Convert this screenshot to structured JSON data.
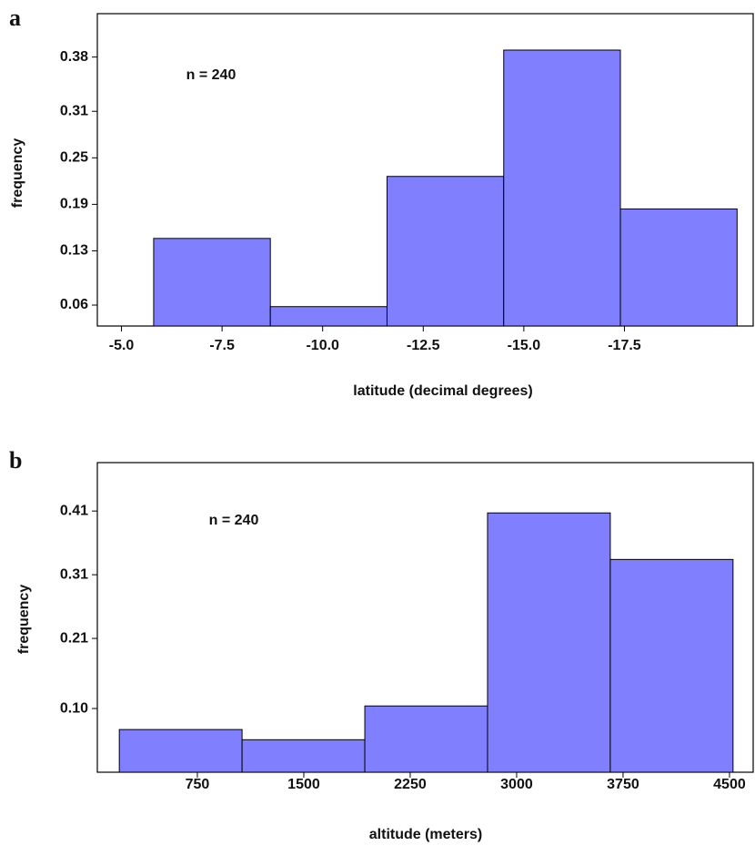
{
  "chart_data": [
    {
      "type": "histogram",
      "panel_label": "a",
      "annotation": "n = 240",
      "x_label": "latitude (decimal degrees)",
      "y_label": "frequency",
      "bins": [
        -5.8,
        -8.7,
        -11.6,
        -14.5,
        -17.4,
        -20.3
      ],
      "values": [
        0.146,
        0.058,
        0.226,
        0.389,
        0.184
      ],
      "color": "#8080ff",
      "xlim": [
        -4.4,
        -20.7
      ],
      "xticks": [
        {
          "value": -5,
          "label": "-5.0"
        },
        -7.5,
        {
          "value": -10,
          "label": "-10.0"
        },
        -12.5,
        {
          "value": -15,
          "label": "-15.0"
        },
        -17.5
      ],
      "ylim": [
        0.033,
        0.436
      ],
      "yticks": [
        0.06,
        0.13,
        0.19,
        0.25,
        0.31,
        0.38
      ]
    },
    {
      "type": "histogram",
      "panel_label": "b",
      "annotation": "n = 240",
      "x_label": "altitude (meters)",
      "y_label": "frequency",
      "bins": [
        200,
        1065,
        1930,
        2795,
        3660,
        4525
      ],
      "values": [
        0.067,
        0.051,
        0.104,
        0.407,
        0.334
      ],
      "color": "#8080ff",
      "xlim": [
        45,
        4667
      ],
      "xticks": [
        750,
        1500,
        2250,
        3000,
        3750,
        4500
      ],
      "ylim": [
        0,
        0.486
      ],
      "yticks": [
        {
          "value": 0.1,
          "label": "0.10"
        },
        0.21,
        0.31,
        0.41
      ]
    }
  ]
}
